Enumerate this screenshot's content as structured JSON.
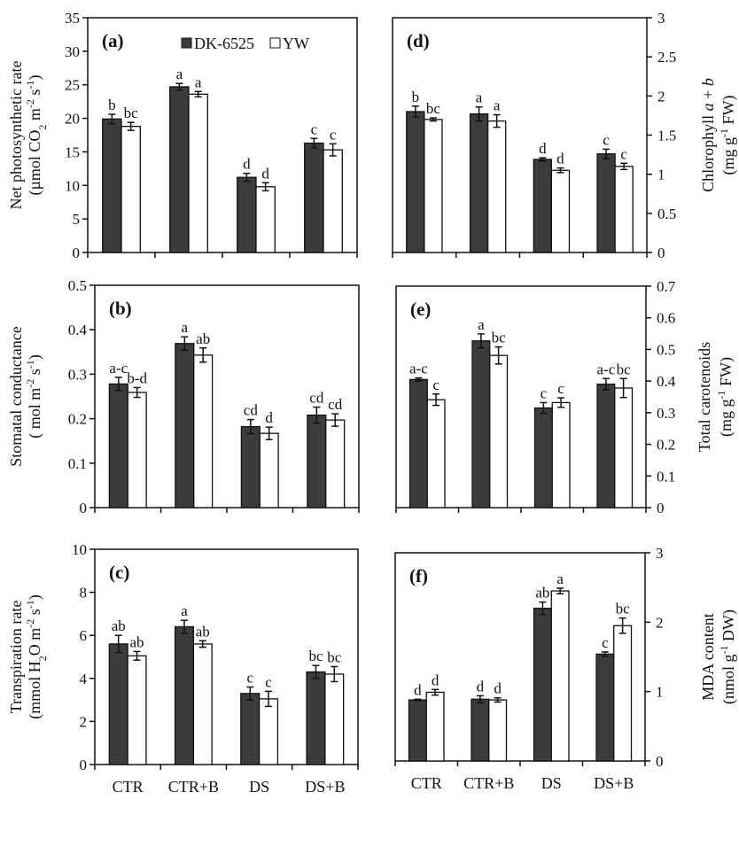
{
  "colors": {
    "DK-6525": "#3c3c3c",
    "YW": "#ffffff",
    "axis": "#111111"
  },
  "legend": {
    "items": [
      "DK-6525",
      "YW"
    ],
    "placement": "top, panel (a)"
  },
  "chart_data": [
    {
      "type": "bar",
      "panel": "(a)",
      "axis_side": "left",
      "categories": [
        "CTR",
        "CTR+B",
        "DS",
        "DS+B"
      ],
      "ylabel": [
        [
          {
            "t": "Net photosynthetic rate"
          }
        ],
        [
          {
            "t": "(µmol CO"
          },
          {
            "t": "2",
            "sub": true
          },
          {
            "t": " m"
          },
          {
            "t": "-2",
            "sup": true
          },
          {
            "t": " s"
          },
          {
            "t": "-1",
            "sup": true
          },
          {
            "t": ")"
          }
        ]
      ],
      "ylim": [
        0,
        35
      ],
      "yticks": [
        0,
        5,
        10,
        15,
        20,
        25,
        30,
        35
      ],
      "show_xlabels": false,
      "series": [
        {
          "name": "DK-6525",
          "values": [
            19.9,
            24.7,
            11.2,
            16.3
          ],
          "err": [
            0.7,
            0.5,
            0.6,
            0.7
          ],
          "letters": [
            "b",
            "a",
            "d",
            "c"
          ]
        },
        {
          "name": "YW",
          "values": [
            18.8,
            23.6,
            9.8,
            15.3
          ],
          "err": [
            0.6,
            0.4,
            0.6,
            0.9
          ],
          "letters": [
            "bc",
            "a",
            "d",
            "c"
          ]
        }
      ]
    },
    {
      "type": "bar",
      "panel": "(b)",
      "axis_side": "left",
      "categories": [
        "CTR",
        "CTR+B",
        "DS",
        "DS+B"
      ],
      "ylabel": [
        [
          {
            "t": "Stomatal conductance"
          }
        ],
        [
          {
            "t": "( mol m"
          },
          {
            "t": "-2",
            "sup": true
          },
          {
            "t": " s"
          },
          {
            "t": "-1",
            "sup": true
          },
          {
            "t": ")"
          }
        ]
      ],
      "ylim": [
        0,
        0.5
      ],
      "yticks": [
        0,
        0.1,
        0.2,
        0.3,
        0.4,
        0.5
      ],
      "show_xlabels": false,
      "series": [
        {
          "name": "DK-6525",
          "values": [
            0.278,
            0.369,
            0.182,
            0.208
          ],
          "err": [
            0.015,
            0.015,
            0.016,
            0.018
          ],
          "letters": [
            "a-c",
            "a",
            "cd",
            "cd"
          ]
        },
        {
          "name": "YW",
          "values": [
            0.259,
            0.343,
            0.167,
            0.197
          ],
          "err": [
            0.011,
            0.016,
            0.014,
            0.014
          ],
          "letters": [
            "b-d",
            "ab",
            "d",
            "cd"
          ]
        }
      ]
    },
    {
      "type": "bar",
      "panel": "(c)",
      "axis_side": "left",
      "categories": [
        "CTR",
        "CTR+B",
        "DS",
        "DS+B"
      ],
      "ylabel": [
        [
          {
            "t": "Transpiration rate"
          }
        ],
        [
          {
            "t": "(mmol H"
          },
          {
            "t": "2",
            "sub": true
          },
          {
            "t": "O m"
          },
          {
            "t": "-2",
            "sup": true
          },
          {
            "t": " s"
          },
          {
            "t": "-1",
            "sup": true
          },
          {
            "t": ")"
          }
        ]
      ],
      "ylim": [
        0,
        10
      ],
      "yticks": [
        0,
        2,
        4,
        6,
        8,
        10
      ],
      "show_xlabels": true,
      "series": [
        {
          "name": "DK-6525",
          "values": [
            5.6,
            6.4,
            3.3,
            4.3
          ],
          "err": [
            0.4,
            0.3,
            0.3,
            0.3
          ],
          "letters": [
            "ab",
            "a",
            "c",
            "bc"
          ]
        },
        {
          "name": "YW",
          "values": [
            5.05,
            5.6,
            3.05,
            4.2
          ],
          "err": [
            0.2,
            0.15,
            0.35,
            0.35
          ],
          "letters": [
            "ab",
            "ab",
            "c",
            "bc"
          ]
        }
      ]
    },
    {
      "type": "bar",
      "panel": "(d)",
      "axis_side": "right",
      "categories": [
        "CTR",
        "CTR+B",
        "DS",
        "DS+B"
      ],
      "ylabel": [
        [
          {
            "t": "Chlorophyll "
          },
          {
            "t": "a",
            "it": true
          },
          {
            "t": " + "
          },
          {
            "t": "b",
            "it": true
          }
        ],
        [
          {
            "t": "(mg g"
          },
          {
            "t": "-1",
            "sup": true
          },
          {
            "t": " FW)"
          }
        ]
      ],
      "ylim": [
        0,
        3
      ],
      "yticks": [
        0,
        0.5,
        1,
        1.5,
        2,
        2.5,
        3
      ],
      "show_xlabels": false,
      "series": [
        {
          "name": "DK-6525",
          "values": [
            1.8,
            1.77,
            1.19,
            1.26
          ],
          "err": [
            0.07,
            0.09,
            0.02,
            0.06
          ],
          "letters": [
            "b",
            "a",
            "d",
            "c"
          ]
        },
        {
          "name": "YW",
          "values": [
            1.7,
            1.68,
            1.05,
            1.1
          ],
          "err": [
            0.02,
            0.08,
            0.03,
            0.04
          ],
          "letters": [
            "bc",
            "a",
            "d",
            "c"
          ]
        }
      ]
    },
    {
      "type": "bar",
      "panel": "(e)",
      "axis_side": "right",
      "categories": [
        "CTR",
        "CTR+B",
        "DS",
        "DS+B"
      ],
      "ylabel": [
        [
          {
            "t": "Total carotenoids"
          }
        ],
        [
          {
            "t": "(mg g"
          },
          {
            "t": "-1",
            "sup": true
          },
          {
            "t": " FW)"
          }
        ]
      ],
      "ylim": [
        0,
        0.7
      ],
      "yticks": [
        0,
        0.1,
        0.2,
        0.3,
        0.4,
        0.5,
        0.6,
        0.7
      ],
      "show_xlabels": false,
      "series": [
        {
          "name": "DK-6525",
          "values": [
            0.405,
            0.527,
            0.315,
            0.39
          ],
          "err": [
            0.005,
            0.022,
            0.017,
            0.018
          ],
          "letters": [
            "a-c",
            "a",
            "c",
            "a-c"
          ]
        },
        {
          "name": "YW",
          "values": [
            0.341,
            0.481,
            0.332,
            0.378
          ],
          "err": [
            0.018,
            0.027,
            0.015,
            0.03
          ],
          "letters": [
            "c",
            "bc",
            "c",
            "bc"
          ]
        }
      ]
    },
    {
      "type": "bar",
      "panel": "(f)",
      "axis_side": "right",
      "categories": [
        "CTR",
        "CTR+B",
        "DS",
        "DS+B"
      ],
      "ylabel": [
        [
          {
            "t": "MDA content"
          }
        ],
        [
          {
            "t": "(nmol g"
          },
          {
            "t": "-1",
            "sup": true
          },
          {
            "t": " DW)"
          }
        ]
      ],
      "ylim": [
        0,
        3
      ],
      "yticks": [
        0,
        1,
        2,
        3
      ],
      "show_xlabels": true,
      "series": [
        {
          "name": "DK-6525",
          "values": [
            0.88,
            0.89,
            2.2,
            1.54
          ],
          "err": [
            0.01,
            0.05,
            0.09,
            0.03
          ],
          "letters": [
            "d",
            "d",
            "ab",
            "c"
          ]
        },
        {
          "name": "YW",
          "values": [
            0.99,
            0.88,
            2.45,
            1.95
          ],
          "err": [
            0.04,
            0.03,
            0.04,
            0.11
          ],
          "letters": [
            "d",
            "d",
            "a",
            "bc"
          ]
        }
      ]
    }
  ]
}
